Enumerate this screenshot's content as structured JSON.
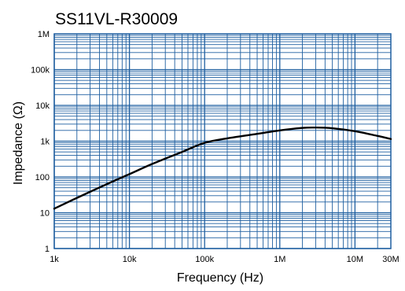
{
  "chart_data": {
    "type": "line",
    "title": "SS11VL-R30009",
    "xlabel": "Frequency (Hz)",
    "ylabel": "Impedance (Ω)",
    "x_scale": "log",
    "y_scale": "log",
    "xlim": [
      1000,
      30000000
    ],
    "ylim": [
      1,
      1000000
    ],
    "grid": true,
    "x_ticks": [
      {
        "value": 1000,
        "label": "1k"
      },
      {
        "value": 10000,
        "label": "10k"
      },
      {
        "value": 100000,
        "label": "100k"
      },
      {
        "value": 1000000,
        "label": "1M"
      },
      {
        "value": 10000000,
        "label": "10M"
      },
      {
        "value": 30000000,
        "label": "30M"
      }
    ],
    "y_ticks": [
      {
        "value": 1,
        "label": "1"
      },
      {
        "value": 10,
        "label": "10"
      },
      {
        "value": 100,
        "label": "100"
      },
      {
        "value": 1000,
        "label": "1k"
      },
      {
        "value": 10000,
        "label": "10k"
      },
      {
        "value": 100000,
        "label": "100k"
      },
      {
        "value": 1000000,
        "label": "1M"
      }
    ],
    "colors": {
      "grid": "#1f5fa0",
      "line": "#000000",
      "frame": "#1f5fa0"
    },
    "series": [
      {
        "x": [
          1000,
          2000,
          5000,
          10000,
          20000,
          50000,
          100000,
          200000,
          500000,
          1000000,
          2000000,
          3000000,
          5000000,
          10000000,
          20000000,
          30000000
        ],
        "y": [
          13,
          26,
          63,
          120,
          230,
          500,
          900,
          1200,
          1600,
          2000,
          2350,
          2400,
          2300,
          1900,
          1400,
          1150
        ]
      }
    ]
  }
}
